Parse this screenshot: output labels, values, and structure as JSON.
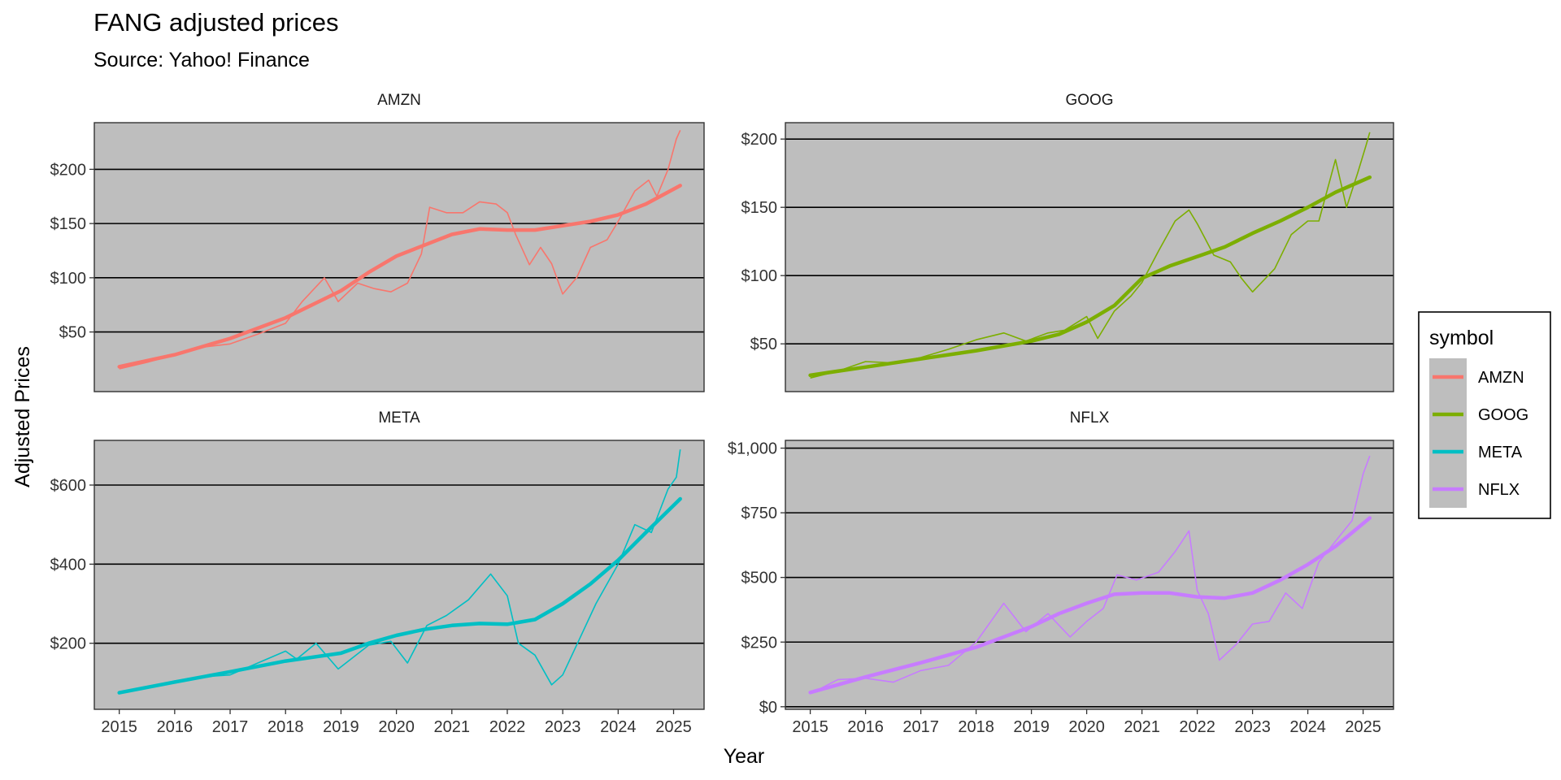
{
  "chart_data": {
    "type": "line",
    "title": "FANG adjusted prices",
    "subtitle": "Source: Yahoo! Finance",
    "xlabel": "Year",
    "ylabel": "Adjusted Prices",
    "x_ticks": [
      "2015",
      "2016",
      "2017",
      "2018",
      "2019",
      "2020",
      "2021",
      "2022",
      "2023",
      "2024",
      "2025"
    ],
    "xlim": [
      2014.55,
      2025.55
    ],
    "legend": {
      "title": "symbol",
      "position": "right"
    },
    "grid": true,
    "facets": [
      {
        "name": "AMZN",
        "color": "#F8766D",
        "ylim": [
          -5,
          243
        ],
        "y_ticks": [
          50,
          100,
          150,
          200
        ],
        "y_tick_labels": [
          "$50",
          "$100",
          "$150",
          "$200"
        ],
        "price_x": [
          2015.0,
          2015.5,
          2016.0,
          2016.5,
          2017.0,
          2017.5,
          2018.0,
          2018.3,
          2018.7,
          2018.95,
          2019.3,
          2019.6,
          2019.9,
          2020.2,
          2020.45,
          2020.6,
          2020.9,
          2021.2,
          2021.5,
          2021.8,
          2022.0,
          2022.15,
          2022.4,
          2022.6,
          2022.8,
          2023.0,
          2023.25,
          2023.5,
          2023.8,
          2024.0,
          2024.3,
          2024.55,
          2024.7,
          2024.9,
          2025.05,
          2025.12
        ],
        "price_y": [
          16,
          22,
          29,
          36,
          39,
          48,
          58,
          78,
          100,
          78,
          95,
          90,
          87,
          95,
          122,
          165,
          160,
          160,
          170,
          168,
          160,
          140,
          112,
          128,
          113,
          85,
          100,
          128,
          135,
          152,
          180,
          190,
          175,
          200,
          228,
          236
        ],
        "trend_x": [
          2015.0,
          2016.0,
          2017.0,
          2018.0,
          2019.0,
          2019.5,
          2020.0,
          2020.5,
          2021.0,
          2021.5,
          2022.0,
          2022.5,
          2023.0,
          2023.5,
          2024.0,
          2024.5,
          2025.12
        ],
        "trend_y": [
          18,
          29,
          44,
          63,
          88,
          105,
          120,
          130,
          140,
          145,
          144,
          144,
          148,
          152,
          158,
          168,
          185
        ]
      },
      {
        "name": "GOOG",
        "color": "#7CAE00",
        "ylim": [
          15,
          212
        ],
        "y_ticks": [
          50,
          100,
          150,
          200
        ],
        "y_tick_labels": [
          "$50",
          "$100",
          "$150",
          "$200"
        ],
        "price_x": [
          2015.0,
          2015.5,
          2016.0,
          2016.5,
          2017.0,
          2017.5,
          2018.0,
          2018.5,
          2018.9,
          2019.3,
          2019.6,
          2020.0,
          2020.2,
          2020.5,
          2020.8,
          2021.0,
          2021.3,
          2021.6,
          2021.85,
          2022.0,
          2022.3,
          2022.6,
          2022.8,
          2023.0,
          2023.4,
          2023.7,
          2024.0,
          2024.2,
          2024.5,
          2024.7,
          2024.9,
          2025.05,
          2025.12
        ],
        "price_y": [
          25,
          30,
          37,
          36,
          40,
          46,
          53,
          58,
          52,
          58,
          60,
          70,
          54,
          74,
          85,
          95,
          118,
          140,
          148,
          138,
          115,
          110,
          98,
          88,
          105,
          130,
          140,
          140,
          185,
          150,
          175,
          195,
          205
        ],
        "trend_x": [
          2015.0,
          2016.0,
          2017.0,
          2018.0,
          2019.0,
          2019.5,
          2020.0,
          2020.5,
          2021.0,
          2021.5,
          2022.0,
          2022.5,
          2023.0,
          2023.5,
          2024.0,
          2024.5,
          2025.12
        ],
        "trend_y": [
          27,
          33,
          39,
          45,
          52,
          57,
          66,
          78,
          98,
          107,
          114,
          121,
          131,
          140,
          150,
          161,
          172
        ]
      },
      {
        "name": "META",
        "color": "#00BFC4",
        "ylim": [
          33,
          713
        ],
        "y_ticks": [
          200,
          400,
          600
        ],
        "y_tick_labels": [
          "$200",
          "$400",
          "$600"
        ],
        "price_x": [
          2015.0,
          2015.5,
          2016.0,
          2016.5,
          2017.0,
          2017.5,
          2018.0,
          2018.2,
          2018.55,
          2018.95,
          2019.5,
          2019.9,
          2020.2,
          2020.55,
          2020.9,
          2021.3,
          2021.7,
          2022.0,
          2022.2,
          2022.5,
          2022.8,
          2023.0,
          2023.3,
          2023.6,
          2024.0,
          2024.3,
          2024.6,
          2024.9,
          2025.05,
          2025.12
        ],
        "price_y": [
          75,
          88,
          105,
          115,
          120,
          150,
          180,
          160,
          200,
          135,
          195,
          205,
          150,
          245,
          270,
          310,
          375,
          320,
          200,
          170,
          95,
          120,
          210,
          300,
          400,
          500,
          480,
          590,
          620,
          690
        ],
        "trend_x": [
          2015.0,
          2016.0,
          2017.0,
          2018.0,
          2019.0,
          2019.5,
          2020.0,
          2020.5,
          2021.0,
          2021.5,
          2022.0,
          2022.5,
          2023.0,
          2023.5,
          2024.0,
          2024.5,
          2025.12
        ],
        "trend_y": [
          75,
          102,
          128,
          155,
          175,
          200,
          220,
          235,
          245,
          250,
          248,
          260,
          300,
          350,
          410,
          480,
          565
        ]
      },
      {
        "name": "NFLX",
        "color": "#C77CFF",
        "ylim": [
          -10,
          1030
        ],
        "y_ticks": [
          0,
          250,
          500,
          750,
          1000
        ],
        "y_tick_labels": [
          "$0",
          "$250",
          "$500",
          "$750",
          "$1,000"
        ],
        "price_x": [
          2015.0,
          2015.5,
          2016.0,
          2016.5,
          2017.0,
          2017.5,
          2018.0,
          2018.5,
          2018.9,
          2019.3,
          2019.7,
          2020.0,
          2020.3,
          2020.55,
          2020.9,
          2021.3,
          2021.6,
          2021.85,
          2022.0,
          2022.2,
          2022.4,
          2022.7,
          2023.0,
          2023.3,
          2023.6,
          2023.9,
          2024.2,
          2024.5,
          2024.8,
          2025.0,
          2025.12
        ],
        "price_y": [
          50,
          105,
          110,
          95,
          140,
          160,
          250,
          400,
          290,
          360,
          270,
          330,
          380,
          510,
          490,
          520,
          600,
          680,
          450,
          360,
          180,
          240,
          320,
          330,
          440,
          380,
          560,
          640,
          720,
          900,
          970
        ],
        "trend_x": [
          2015.0,
          2016.0,
          2017.0,
          2018.0,
          2019.0,
          2019.5,
          2020.0,
          2020.5,
          2021.0,
          2021.5,
          2022.0,
          2022.5,
          2023.0,
          2023.5,
          2024.0,
          2024.5,
          2025.12
        ],
        "trend_y": [
          55,
          115,
          170,
          230,
          310,
          360,
          400,
          435,
          440,
          440,
          425,
          420,
          440,
          490,
          550,
          620,
          730
        ]
      }
    ]
  }
}
